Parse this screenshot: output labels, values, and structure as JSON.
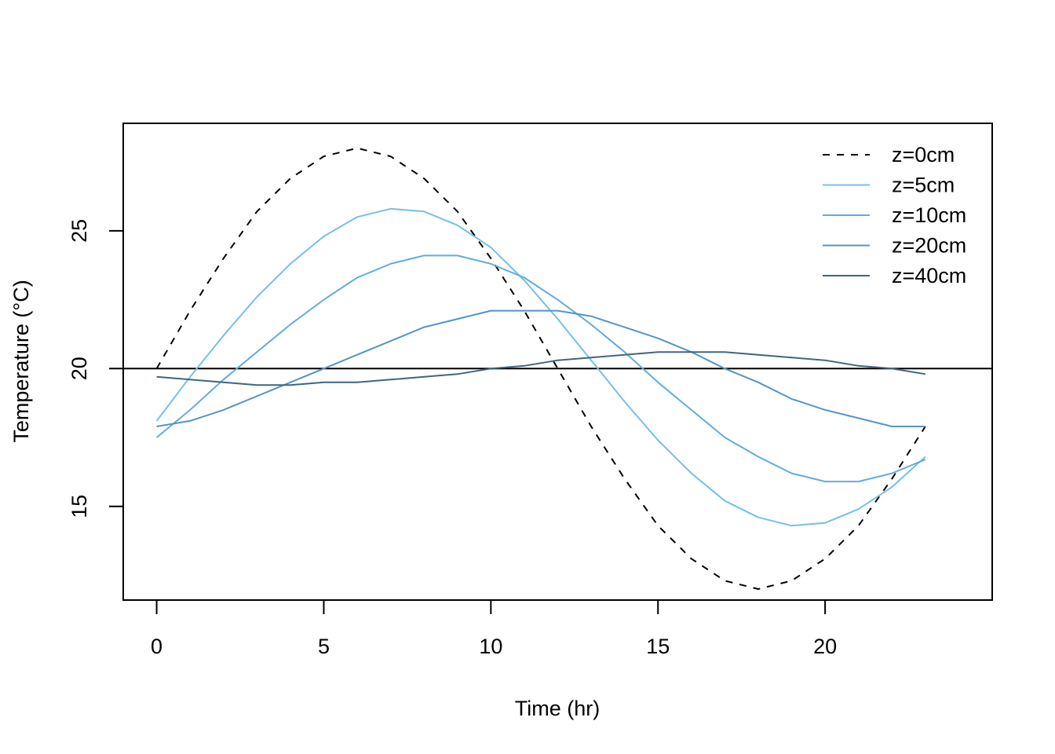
{
  "chart_data": {
    "type": "line",
    "title": "",
    "xlabel": "Time (hr)",
    "ylabel": "Temperature (°C)",
    "xlim": [
      -1,
      25
    ],
    "ylim": [
      11.6,
      28.9
    ],
    "x_ticks": [
      "0",
      "5",
      "10",
      "15",
      "20"
    ],
    "y_ticks": [
      "15",
      "20",
      "25"
    ],
    "grid": false,
    "legend_position": "top-right",
    "reference_line": {
      "y": 20,
      "color": "#000000"
    },
    "x": [
      0,
      1,
      2,
      3,
      4,
      5,
      6,
      7,
      8,
      9,
      10,
      11,
      12,
      13,
      14,
      15,
      16,
      17,
      18,
      19,
      20,
      21,
      22,
      23
    ],
    "series": [
      {
        "name": "z=0cm",
        "color": "#000000",
        "dash": "dashed",
        "values": [
          20.0,
          22.1,
          24.0,
          25.7,
          26.9,
          27.7,
          28.0,
          27.7,
          26.9,
          25.7,
          24.0,
          22.1,
          20.0,
          17.9,
          16.0,
          14.3,
          13.1,
          12.3,
          12.0,
          12.3,
          13.1,
          14.3,
          16.0,
          17.9
        ]
      },
      {
        "name": "z=5cm",
        "color": "#74C0E8",
        "dash": "solid",
        "values": [
          18.1,
          19.7,
          21.2,
          22.6,
          23.8,
          24.8,
          25.5,
          25.8,
          25.7,
          25.2,
          24.4,
          23.2,
          21.8,
          20.3,
          18.8,
          17.4,
          16.2,
          15.2,
          14.6,
          14.3,
          14.4,
          14.9,
          15.7,
          16.8
        ]
      },
      {
        "name": "z=10cm",
        "color": "#63ACE0",
        "dash": "solid",
        "values": [
          17.5,
          18.5,
          19.6,
          20.6,
          21.6,
          22.5,
          23.3,
          23.8,
          24.1,
          24.1,
          23.8,
          23.3,
          22.5,
          21.6,
          20.6,
          19.5,
          18.5,
          17.5,
          16.8,
          16.2,
          15.9,
          15.9,
          16.2,
          16.7
        ]
      },
      {
        "name": "z=20cm",
        "color": "#5595C4",
        "dash": "solid",
        "values": [
          17.9,
          18.1,
          18.5,
          19.0,
          19.5,
          20.0,
          20.5,
          21.0,
          21.5,
          21.8,
          22.1,
          22.1,
          22.1,
          21.9,
          21.5,
          21.1,
          20.6,
          20.0,
          19.5,
          18.9,
          18.5,
          18.2,
          17.9,
          17.9
        ]
      },
      {
        "name": "z=40cm",
        "color": "#3F6680",
        "dash": "solid",
        "values": [
          19.7,
          19.6,
          19.5,
          19.4,
          19.4,
          19.5,
          19.5,
          19.6,
          19.7,
          19.8,
          20.0,
          20.1,
          20.3,
          20.4,
          20.5,
          20.6,
          20.6,
          20.6,
          20.5,
          20.4,
          20.3,
          20.1,
          20.0,
          19.8
        ]
      }
    ]
  }
}
